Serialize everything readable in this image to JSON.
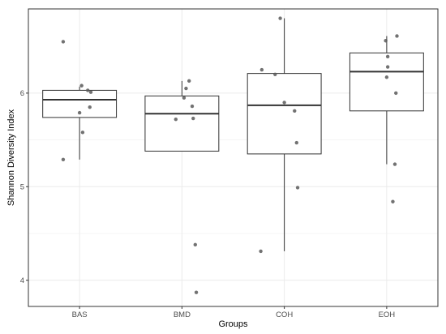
{
  "chart_data": {
    "type": "boxplot",
    "xlabel": "Groups",
    "ylabel": "Shannon Diversity Index",
    "categories": [
      "BAS",
      "BMD",
      "COH",
      "EOH"
    ],
    "ylim": [
      3.72,
      6.9
    ],
    "yticks": [
      4,
      5,
      6
    ],
    "grid": true,
    "boxes": [
      {
        "category": "BAS",
        "whisker_low": 5.29,
        "q1": 5.74,
        "median": 5.93,
        "q3": 6.03,
        "whisker_high": 6.07
      },
      {
        "category": "BMD",
        "whisker_low": 5.38,
        "q1": 5.38,
        "median": 5.78,
        "q3": 5.97,
        "whisker_high": 6.13
      },
      {
        "category": "COH",
        "whisker_low": 4.31,
        "q1": 5.35,
        "median": 5.87,
        "q3": 6.21,
        "whisker_high": 6.8
      },
      {
        "category": "EOH",
        "whisker_low": 5.24,
        "q1": 5.81,
        "median": 6.23,
        "q3": 6.43,
        "whisker_high": 6.61
      }
    ],
    "points": [
      {
        "category": "BAS",
        "values": [
          6.55,
          6.08,
          6.03,
          6.01,
          5.85,
          5.79,
          5.58,
          5.29
        ]
      },
      {
        "category": "BMD",
        "values": [
          6.13,
          6.05,
          5.95,
          5.86,
          5.73,
          5.72,
          4.38,
          3.87
        ]
      },
      {
        "category": "COH",
        "values": [
          6.8,
          6.25,
          6.2,
          5.9,
          5.81,
          5.47,
          4.99,
          4.31
        ]
      },
      {
        "category": "EOH",
        "values": [
          6.61,
          6.56,
          6.39,
          6.28,
          6.17,
          6.0,
          5.24,
          4.84
        ]
      }
    ],
    "point_jitter": {
      "BAS": [
        -0.16,
        0.02,
        0.08,
        0.11,
        0.1,
        0.0,
        0.03,
        -0.16
      ],
      "BMD": [
        0.07,
        0.04,
        0.02,
        0.1,
        0.11,
        -0.06,
        0.13,
        0.14
      ],
      "COH": [
        -0.04,
        -0.22,
        -0.09,
        0.0,
        0.1,
        0.12,
        0.13,
        -0.23
      ],
      "EOH": [
        0.1,
        -0.01,
        0.01,
        0.01,
        0.0,
        0.09,
        0.08,
        0.06
      ]
    },
    "colors": {
      "panel_background": "#ffffff",
      "grid": "#ebebeb",
      "border": "#333333",
      "box_line": "#333333",
      "point": "#595959"
    }
  }
}
